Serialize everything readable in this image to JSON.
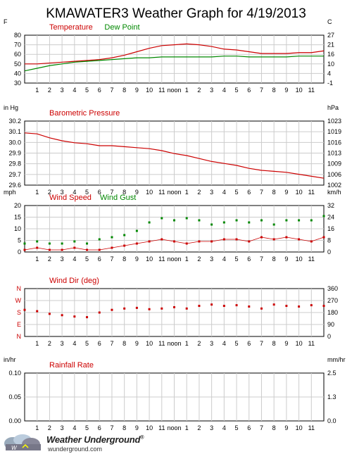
{
  "title": "KMAWATER3 Weather Graph for 4/19/2013",
  "hour_labels": [
    "1",
    "2",
    "3",
    "4",
    "5",
    "6",
    "7",
    "8",
    "9",
    "10",
    "11",
    "noon",
    "1",
    "2",
    "3",
    "4",
    "5",
    "6",
    "7",
    "8",
    "9",
    "10",
    "11"
  ],
  "colors": {
    "red": "#cc0000",
    "green": "#008800",
    "grid": "#cccccc",
    "axis": "#000000",
    "bg": "#ffffff"
  },
  "chart_data": [
    {
      "type": "line",
      "title": "",
      "left_unit": "F",
      "right_unit": "C",
      "yticks_left": [
        "80",
        "70",
        "60",
        "50",
        "40",
        "30"
      ],
      "ylim": [
        30,
        85
      ],
      "yticks_right": [
        "27",
        "21",
        "16",
        "10",
        "4",
        "-1"
      ],
      "legend": [
        "Temperature",
        "Dew Point"
      ],
      "x_hours": [
        0,
        1,
        2,
        3,
        4,
        5,
        6,
        7,
        8,
        9,
        10,
        11,
        12,
        13,
        14,
        15,
        16,
        17,
        18,
        19,
        20,
        21,
        22,
        23,
        24
      ],
      "series": [
        {
          "name": "Temperature",
          "color": "#cc0000",
          "values": [
            52,
            52,
            53,
            54,
            55,
            56,
            57,
            59,
            62,
            66,
            70,
            73,
            74,
            75,
            74,
            72,
            69,
            68,
            66,
            64,
            64,
            64,
            65,
            65,
            67
          ]
        },
        {
          "name": "Dew Point",
          "color": "#008800",
          "values": [
            44,
            47,
            50,
            52,
            54,
            55,
            56,
            57,
            58,
            59,
            59,
            60,
            60,
            60,
            60,
            60,
            61,
            61,
            60,
            60,
            60,
            60,
            61,
            61,
            61
          ]
        }
      ]
    },
    {
      "type": "line",
      "left_unit": "in Hg",
      "right_unit": "hPa",
      "yticks_left": [
        "30.2",
        "30.1",
        "30.0",
        "29.9",
        "29.8",
        "29.7",
        "29.6"
      ],
      "ylim": [
        29.6,
        30.25
      ],
      "yticks_right": [
        "1023",
        "1019",
        "1016",
        "1013",
        "1009",
        "1006",
        "1002"
      ],
      "legend": [
        "Barometric Pressure"
      ],
      "x_hours": [
        0,
        1,
        2,
        3,
        4,
        5,
        6,
        7,
        8,
        9,
        10,
        11,
        12,
        13,
        14,
        15,
        16,
        17,
        18,
        19,
        20,
        21,
        22,
        23,
        24
      ],
      "series": [
        {
          "name": "Barometric Pressure",
          "color": "#cc0000",
          "values": [
            30.13,
            30.12,
            30.08,
            30.05,
            30.03,
            30.02,
            30.0,
            30.0,
            29.99,
            29.98,
            29.97,
            29.95,
            29.92,
            29.9,
            29.87,
            29.84,
            29.82,
            29.8,
            29.77,
            29.75,
            29.74,
            29.73,
            29.71,
            29.69,
            29.67
          ]
        }
      ]
    },
    {
      "type": "scatter",
      "left_unit": "mph",
      "right_unit": "km/h",
      "yticks_left": [
        "20",
        "15",
        "10",
        "5",
        "0"
      ],
      "ylim": [
        0,
        22
      ],
      "yticks_right": [
        "32",
        "24",
        "16",
        "8",
        "0"
      ],
      "legend": [
        "Wind Speed",
        "Wind Gust"
      ],
      "x_hours": [
        0,
        1,
        2,
        3,
        4,
        5,
        6,
        7,
        8,
        9,
        10,
        11,
        12,
        13,
        14,
        15,
        16,
        17,
        18,
        19,
        20,
        21,
        22,
        23,
        24
      ],
      "series": [
        {
          "name": "Wind Speed",
          "color": "#cc0000",
          "values": [
            1,
            2,
            1,
            1,
            2,
            1,
            1,
            2,
            3,
            4,
            5,
            6,
            5,
            4,
            5,
            5,
            6,
            6,
            5,
            7,
            6,
            7,
            6,
            5,
            7
          ]
        },
        {
          "name": "Wind Gust",
          "color": "#008800",
          "values": [
            4,
            5,
            4,
            4,
            5,
            4,
            6,
            7,
            8,
            10,
            14,
            16,
            15,
            16,
            15,
            13,
            14,
            15,
            14,
            15,
            13,
            15,
            15,
            15,
            17
          ]
        }
      ]
    },
    {
      "type": "scatter",
      "legend": [
        "Wind Dir (deg)"
      ],
      "yticks_left": [
        "N",
        "W",
        "S",
        "E",
        "N"
      ],
      "ylim": [
        0,
        360
      ],
      "yticks_right": [
        "360",
        "270",
        "180",
        "90",
        "0"
      ],
      "x_hours": [
        0,
        1,
        2,
        3,
        4,
        5,
        6,
        7,
        8,
        9,
        10,
        11,
        12,
        13,
        14,
        15,
        16,
        17,
        18,
        19,
        20,
        21,
        22,
        23,
        24
      ],
      "series": [
        {
          "name": "Wind Dir (deg)",
          "color": "#cc0000",
          "values": [
            200,
            190,
            170,
            160,
            150,
            145,
            180,
            200,
            210,
            215,
            205,
            210,
            220,
            210,
            230,
            240,
            230,
            235,
            225,
            210,
            240,
            230,
            225,
            235,
            230
          ]
        }
      ]
    },
    {
      "type": "line",
      "left_unit": "in/hr",
      "right_unit": "mm/hr",
      "yticks_left": [
        "0.10",
        "0.05",
        "0.00"
      ],
      "ylim": [
        0,
        0.1
      ],
      "yticks_right": [
        "2.5",
        "1.3",
        "0.0"
      ],
      "legend": [
        "Rainfall Rate"
      ],
      "series": []
    }
  ],
  "logo": {
    "brand": "Weather Underground",
    "trademark": "®",
    "url": "wunderground.com"
  }
}
